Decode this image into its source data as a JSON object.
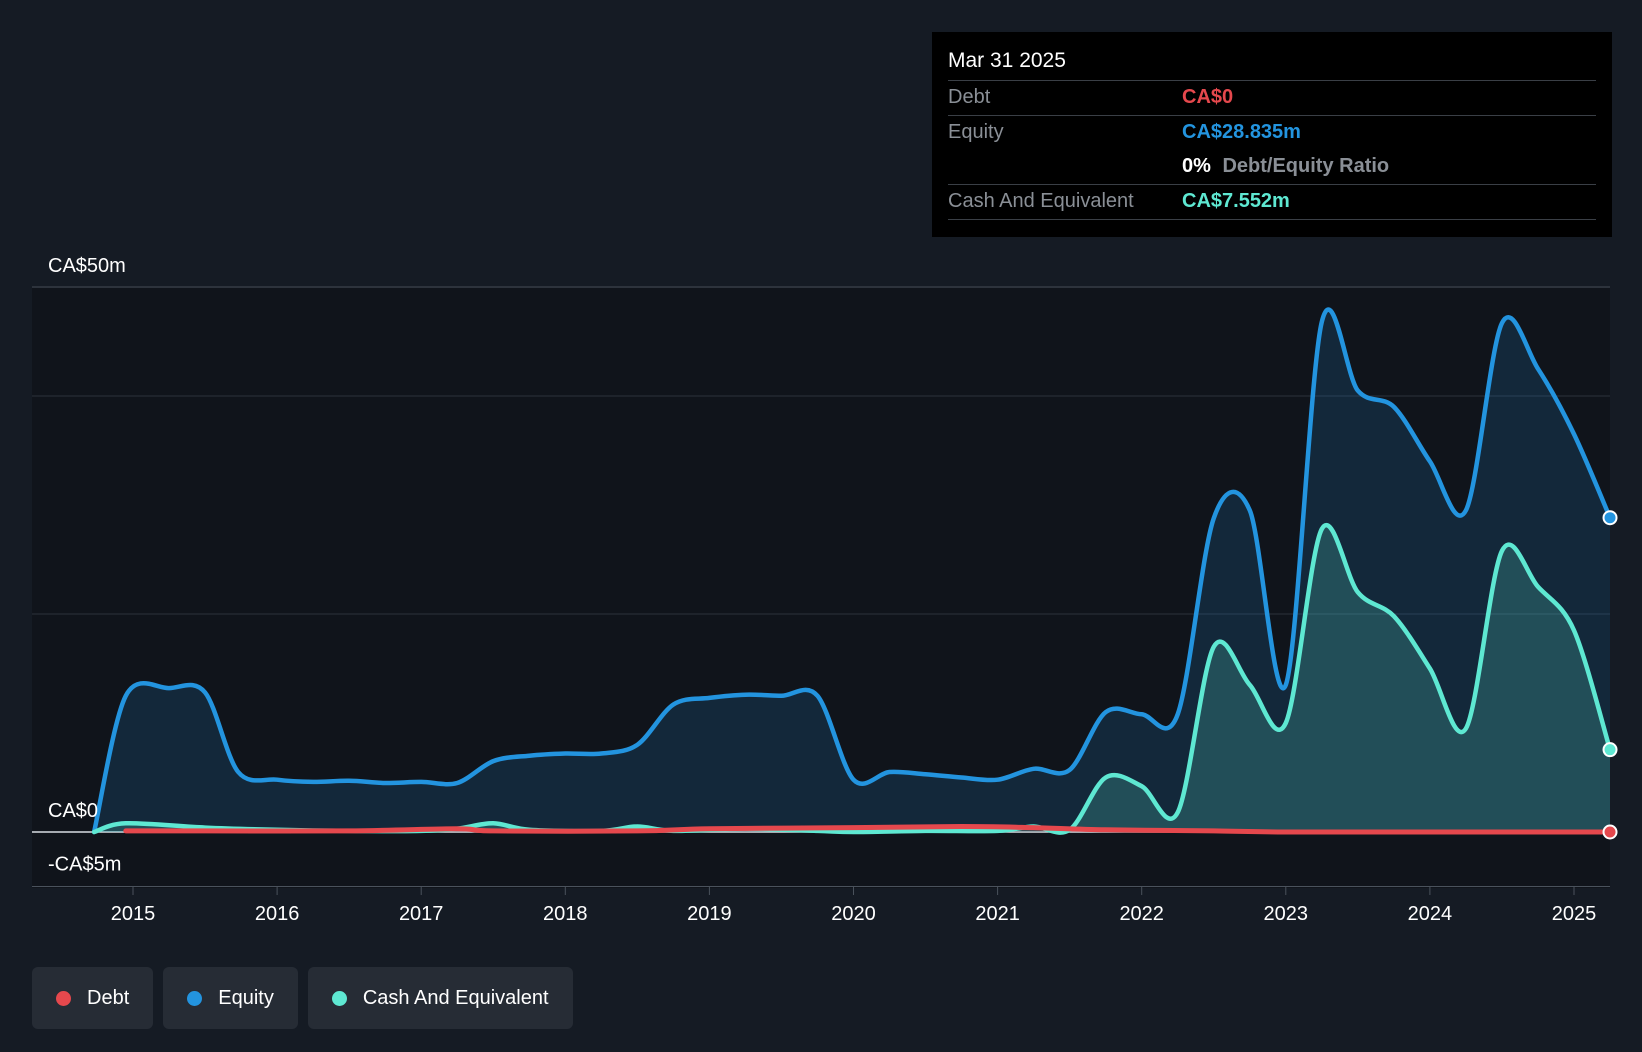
{
  "chart_data": {
    "type": "area",
    "xlim": [
      2014.7,
      2025.25
    ],
    "ylim": [
      -5,
      50
    ],
    "x_ticks": [
      "2015",
      "2016",
      "2017",
      "2018",
      "2019",
      "2020",
      "2021",
      "2022",
      "2023",
      "2024",
      "2025"
    ],
    "y_labels": [
      {
        "value": 50,
        "label": "CA$50m"
      },
      {
        "value": 0,
        "label": "CA$0"
      },
      {
        "value": -5,
        "label": "-CA$5m"
      }
    ],
    "gridlines": [
      50,
      40,
      20,
      0,
      -5
    ],
    "series": [
      {
        "name": "Debt",
        "color": "#e5484d",
        "points": [
          [
            2014.95,
            0.1
          ],
          [
            2015.5,
            0.1
          ],
          [
            2016.5,
            0.1
          ],
          [
            2017.25,
            0.3
          ],
          [
            2017.5,
            0.1
          ],
          [
            2018.5,
            0.1
          ],
          [
            2019.0,
            0.3
          ],
          [
            2020.0,
            0.4
          ],
          [
            2020.75,
            0.5
          ],
          [
            2021.25,
            0.4
          ],
          [
            2021.75,
            0.2
          ],
          [
            2022.5,
            0.1
          ],
          [
            2023.0,
            0.0
          ],
          [
            2024.0,
            0.0
          ],
          [
            2025.25,
            0.0
          ]
        ]
      },
      {
        "name": "Equity",
        "color": "#2394df",
        "points": [
          [
            2014.73,
            0.0
          ],
          [
            2014.95,
            12.5
          ],
          [
            2015.25,
            13.2
          ],
          [
            2015.5,
            12.8
          ],
          [
            2015.73,
            5.5
          ],
          [
            2016.0,
            4.8
          ],
          [
            2016.25,
            4.6
          ],
          [
            2016.5,
            4.7
          ],
          [
            2016.75,
            4.5
          ],
          [
            2017.0,
            4.6
          ],
          [
            2017.25,
            4.5
          ],
          [
            2017.5,
            6.5
          ],
          [
            2017.75,
            7.0
          ],
          [
            2018.0,
            7.2
          ],
          [
            2018.25,
            7.2
          ],
          [
            2018.5,
            8.0
          ],
          [
            2018.75,
            11.7
          ],
          [
            2019.0,
            12.3
          ],
          [
            2019.25,
            12.6
          ],
          [
            2019.5,
            12.5
          ],
          [
            2019.75,
            12.5
          ],
          [
            2020.0,
            4.8
          ],
          [
            2020.25,
            5.5
          ],
          [
            2020.5,
            5.3
          ],
          [
            2020.75,
            5.0
          ],
          [
            2021.0,
            4.8
          ],
          [
            2021.25,
            5.8
          ],
          [
            2021.5,
            5.7
          ],
          [
            2021.75,
            11.0
          ],
          [
            2022.0,
            10.8
          ],
          [
            2022.25,
            10.8
          ],
          [
            2022.5,
            28.8
          ],
          [
            2022.75,
            29.5
          ],
          [
            2023.0,
            13.5
          ],
          [
            2023.25,
            46.8
          ],
          [
            2023.5,
            40.5
          ],
          [
            2023.75,
            39.0
          ],
          [
            2024.0,
            34.0
          ],
          [
            2024.25,
            29.5
          ],
          [
            2024.5,
            46.7
          ],
          [
            2024.75,
            42.5
          ],
          [
            2025.0,
            36.5
          ],
          [
            2025.25,
            28.835
          ]
        ]
      },
      {
        "name": "Cash And Equivalent",
        "color": "#5ee8d2",
        "points": [
          [
            2014.73,
            0.0
          ],
          [
            2014.95,
            0.8
          ],
          [
            2015.5,
            0.4
          ],
          [
            2016.0,
            0.2
          ],
          [
            2016.5,
            0.1
          ],
          [
            2017.0,
            0.1
          ],
          [
            2017.25,
            0.3
          ],
          [
            2017.5,
            0.8
          ],
          [
            2017.75,
            0.2
          ],
          [
            2018.25,
            0.1
          ],
          [
            2018.5,
            0.5
          ],
          [
            2018.75,
            0.1
          ],
          [
            2019.25,
            0.3
          ],
          [
            2019.75,
            0.1
          ],
          [
            2020.0,
            0.0
          ],
          [
            2020.5,
            0.1
          ],
          [
            2021.0,
            0.1
          ],
          [
            2021.25,
            0.5
          ],
          [
            2021.5,
            0.2
          ],
          [
            2021.75,
            5.0
          ],
          [
            2022.0,
            4.2
          ],
          [
            2022.25,
            1.8
          ],
          [
            2022.5,
            17.0
          ],
          [
            2022.75,
            13.5
          ],
          [
            2023.0,
            10.0
          ],
          [
            2023.25,
            27.8
          ],
          [
            2023.5,
            22.0
          ],
          [
            2023.75,
            19.8
          ],
          [
            2024.0,
            15.0
          ],
          [
            2024.25,
            9.5
          ],
          [
            2024.5,
            25.8
          ],
          [
            2024.75,
            22.5
          ],
          [
            2025.0,
            18.5
          ],
          [
            2025.25,
            7.552
          ]
        ]
      }
    ]
  },
  "tooltip": {
    "date": "Mar 31 2025",
    "debt_label": "Debt",
    "debt_value": "CA$0",
    "equity_label": "Equity",
    "equity_value": "CA$28.835m",
    "ratio_value": "0%",
    "ratio_label": "Debt/Equity Ratio",
    "cash_label": "Cash And Equivalent",
    "cash_value": "CA$7.552m"
  },
  "legend": [
    {
      "label": "Debt",
      "color": "#e5484d"
    },
    {
      "label": "Equity",
      "color": "#2394df"
    },
    {
      "label": "Cash And Equivalent",
      "color": "#5ee8d2"
    }
  ]
}
